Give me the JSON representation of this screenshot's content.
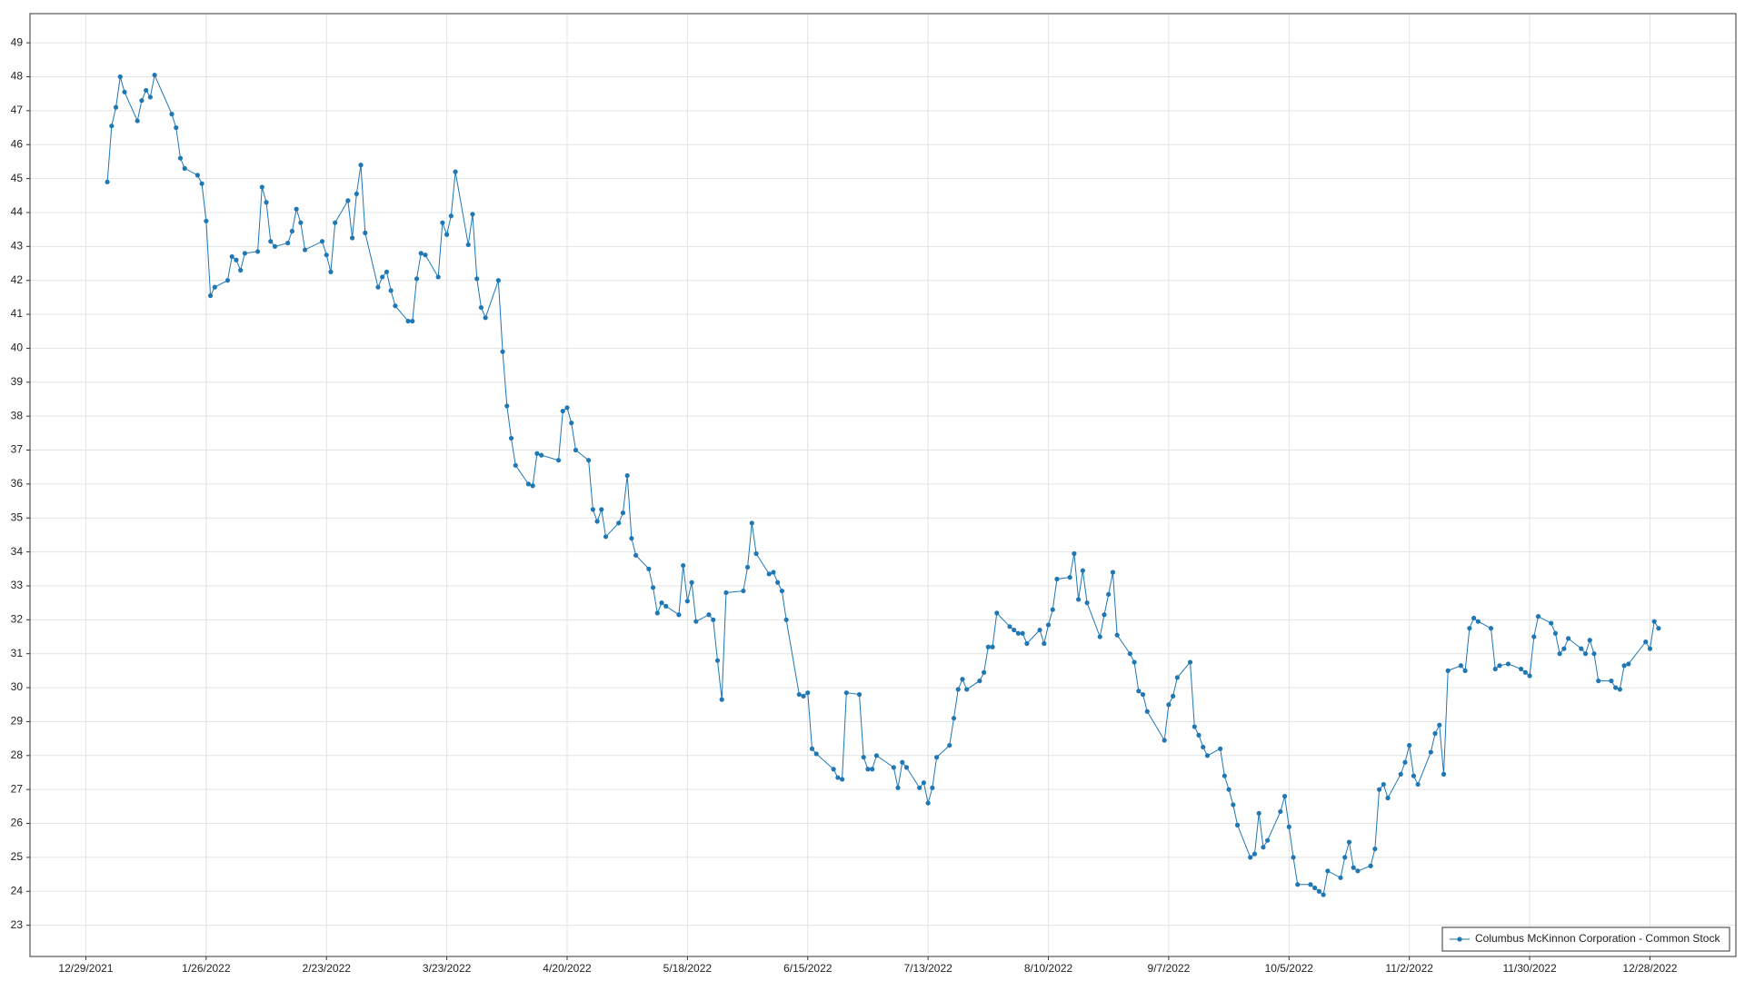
{
  "chart_data": {
    "type": "line",
    "x": [
      "1/3/2022",
      "1/4/2022",
      "1/5/2022",
      "1/6/2022",
      "1/7/2022",
      "1/10/2022",
      "1/11/2022",
      "1/12/2022",
      "1/13/2022",
      "1/14/2022",
      "1/18/2022",
      "1/19/2022",
      "1/20/2022",
      "1/21/2022",
      "1/24/2022",
      "1/25/2022",
      "1/26/2022",
      "1/27/2022",
      "1/28/2022",
      "1/31/2022",
      "2/1/2022",
      "2/2/2022",
      "2/3/2022",
      "2/4/2022",
      "2/7/2022",
      "2/8/2022",
      "2/9/2022",
      "2/10/2022",
      "2/11/2022",
      "2/14/2022",
      "2/15/2022",
      "2/16/2022",
      "2/17/2022",
      "2/18/2022",
      "2/22/2022",
      "2/23/2022",
      "2/24/2022",
      "2/25/2022",
      "2/28/2022",
      "3/1/2022",
      "3/2/2022",
      "3/3/2022",
      "3/4/2022",
      "3/7/2022",
      "3/8/2022",
      "3/9/2022",
      "3/10/2022",
      "3/11/2022",
      "3/14/2022",
      "3/15/2022",
      "3/16/2022",
      "3/17/2022",
      "3/18/2022",
      "3/21/2022",
      "3/22/2022",
      "3/23/2022",
      "3/24/2022",
      "3/25/2022",
      "3/28/2022",
      "3/29/2022",
      "3/30/2022",
      "3/31/2022",
      "4/1/2022",
      "4/4/2022",
      "4/5/2022",
      "4/6/2022",
      "4/7/2022",
      "4/8/2022",
      "4/11/2022",
      "4/12/2022",
      "4/13/2022",
      "4/14/2022",
      "4/18/2022",
      "4/19/2022",
      "4/20/2022",
      "4/21/2022",
      "4/22/2022",
      "4/25/2022",
      "4/26/2022",
      "4/27/2022",
      "4/28/2022",
      "4/29/2022",
      "5/2/2022",
      "5/3/2022",
      "5/4/2022",
      "5/5/2022",
      "5/6/2022",
      "5/9/2022",
      "5/10/2022",
      "5/11/2022",
      "5/12/2022",
      "5/13/2022",
      "5/16/2022",
      "5/17/2022",
      "5/18/2022",
      "5/19/2022",
      "5/20/2022",
      "5/23/2022",
      "5/24/2022",
      "5/25/2022",
      "5/26/2022",
      "5/27/2022",
      "5/31/2022",
      "6/1/2022",
      "6/2/2022",
      "6/3/2022",
      "6/6/2022",
      "6/7/2022",
      "6/8/2022",
      "6/9/2022",
      "6/10/2022",
      "6/13/2022",
      "6/14/2022",
      "6/15/2022",
      "6/16/2022",
      "6/17/2022",
      "6/21/2022",
      "6/22/2022",
      "6/23/2022",
      "6/24/2022",
      "6/27/2022",
      "6/28/2022",
      "6/29/2022",
      "6/30/2022",
      "7/1/2022",
      "7/5/2022",
      "7/6/2022",
      "7/7/2022",
      "7/8/2022",
      "7/11/2022",
      "7/12/2022",
      "7/13/2022",
      "7/14/2022",
      "7/15/2022",
      "7/18/2022",
      "7/19/2022",
      "7/20/2022",
      "7/21/2022",
      "7/22/2022",
      "7/25/2022",
      "7/26/2022",
      "7/27/2022",
      "7/28/2022",
      "7/29/2022",
      "8/1/2022",
      "8/2/2022",
      "8/3/2022",
      "8/4/2022",
      "8/5/2022",
      "8/8/2022",
      "8/9/2022",
      "8/10/2022",
      "8/11/2022",
      "8/12/2022",
      "8/15/2022",
      "8/16/2022",
      "8/17/2022",
      "8/18/2022",
      "8/19/2022",
      "8/22/2022",
      "8/23/2022",
      "8/24/2022",
      "8/25/2022",
      "8/26/2022",
      "8/29/2022",
      "8/30/2022",
      "8/31/2022",
      "9/1/2022",
      "9/2/2022",
      "9/6/2022",
      "9/7/2022",
      "9/8/2022",
      "9/9/2022",
      "9/12/2022",
      "9/13/2022",
      "9/14/2022",
      "9/15/2022",
      "9/16/2022",
      "9/19/2022",
      "9/20/2022",
      "9/21/2022",
      "9/22/2022",
      "9/23/2022",
      "9/26/2022",
      "9/27/2022",
      "9/28/2022",
      "9/29/2022",
      "9/30/2022",
      "10/3/2022",
      "10/4/2022",
      "10/5/2022",
      "10/6/2022",
      "10/7/2022",
      "10/10/2022",
      "10/11/2022",
      "10/12/2022",
      "10/13/2022",
      "10/14/2022",
      "10/17/2022",
      "10/18/2022",
      "10/19/2022",
      "10/20/2022",
      "10/21/2022",
      "10/24/2022",
      "10/25/2022",
      "10/26/2022",
      "10/27/2022",
      "10/28/2022",
      "10/31/2022",
      "11/1/2022",
      "11/2/2022",
      "11/3/2022",
      "11/4/2022",
      "11/7/2022",
      "11/8/2022",
      "11/9/2022",
      "11/10/2022",
      "11/11/2022",
      "11/14/2022",
      "11/15/2022",
      "11/16/2022",
      "11/17/2022",
      "11/18/2022",
      "11/21/2022",
      "11/22/2022",
      "11/23/2022",
      "11/25/2022",
      "11/28/2022",
      "11/29/2022",
      "11/30/2022",
      "12/1/2022",
      "12/2/2022",
      "12/5/2022",
      "12/6/2022",
      "12/7/2022",
      "12/8/2022",
      "12/9/2022",
      "12/12/2022",
      "12/13/2022",
      "12/14/2022",
      "12/15/2022",
      "12/16/2022",
      "12/19/2022",
      "12/20/2022",
      "12/21/2022",
      "12/22/2022",
      "12/23/2022",
      "12/27/2022",
      "12/28/2022",
      "12/29/2022",
      "12/30/2022"
    ],
    "series": [
      {
        "name": "Columbus McKinnon Corporation - Common Stock",
        "color": "#1f77b4",
        "values": [
          44.9,
          46.55,
          47.1,
          48.0,
          47.55,
          46.7,
          47.3,
          47.6,
          47.4,
          48.05,
          46.9,
          46.5,
          45.6,
          45.3,
          45.1,
          44.85,
          43.75,
          41.55,
          41.8,
          42.0,
          42.7,
          42.6,
          42.3,
          42.8,
          42.85,
          44.75,
          44.3,
          43.15,
          43.0,
          43.1,
          43.45,
          44.1,
          43.7,
          42.9,
          43.15,
          42.75,
          42.25,
          43.7,
          44.35,
          43.25,
          44.55,
          45.4,
          43.4,
          41.8,
          42.1,
          42.25,
          41.7,
          41.25,
          40.8,
          40.8,
          42.05,
          42.8,
          42.75,
          42.1,
          43.7,
          43.35,
          43.9,
          45.2,
          43.05,
          43.95,
          42.05,
          41.2,
          40.9,
          42.0,
          39.9,
          38.3,
          37.35,
          36.55,
          36.0,
          35.95,
          36.9,
          36.85,
          36.7,
          38.15,
          38.25,
          37.8,
          37.0,
          36.7,
          35.25,
          34.9,
          35.25,
          34.45,
          34.85,
          35.15,
          36.25,
          34.4,
          33.9,
          33.5,
          32.95,
          32.2,
          32.5,
          32.4,
          32.15,
          33.6,
          32.55,
          33.1,
          31.95,
          32.15,
          32.0,
          30.8,
          29.65,
          32.8,
          32.85,
          33.55,
          34.85,
          33.95,
          33.35,
          33.4,
          33.1,
          32.85,
          32.0,
          29.8,
          29.75,
          29.85,
          28.2,
          28.05,
          27.6,
          27.35,
          27.3,
          29.85,
          29.8,
          27.95,
          27.6,
          27.6,
          28.0,
          27.65,
          27.05,
          27.8,
          27.65,
          27.05,
          27.2,
          26.6,
          27.05,
          27.95,
          28.3,
          29.1,
          29.95,
          30.25,
          29.95,
          30.2,
          30.45,
          31.2,
          31.2,
          32.2,
          31.8,
          31.7,
          31.6,
          31.6,
          31.3,
          31.7,
          31.3,
          31.85,
          32.3,
          33.2,
          33.25,
          33.95,
          32.6,
          33.45,
          32.5,
          31.5,
          32.15,
          32.75,
          33.4,
          31.55,
          31.0,
          30.75,
          29.9,
          29.8,
          29.3,
          28.45,
          29.5,
          29.75,
          30.3,
          30.75,
          28.85,
          28.6,
          28.25,
          28.0,
          28.2,
          27.4,
          27.0,
          26.55,
          25.95,
          25.0,
          25.1,
          26.3,
          25.3,
          25.5,
          26.35,
          26.8,
          25.9,
          25.0,
          24.2,
          24.2,
          24.1,
          24.0,
          23.9,
          24.6,
          24.4,
          25.0,
          25.45,
          24.7,
          24.6,
          24.75,
          25.25,
          27.0,
          27.15,
          26.75,
          27.45,
          27.8,
          28.3,
          27.4,
          27.15,
          28.1,
          28.65,
          28.9,
          27.45,
          30.5,
          30.65,
          30.5,
          31.75,
          32.05,
          31.95,
          31.75,
          30.55,
          30.65,
          30.7,
          30.55,
          30.45,
          30.35,
          31.5,
          32.1,
          31.9,
          31.6,
          31.0,
          31.15,
          31.45,
          31.15,
          31.0,
          31.4,
          31.0,
          30.2,
          30.2,
          30.0,
          29.95,
          30.65,
          30.7,
          31.35,
          31.15,
          31.95,
          31.75
        ]
      }
    ],
    "xlim": [
      "12/16/2021",
      "1/17/2023"
    ],
    "xticks": [
      "12/29/2021",
      "1/26/2022",
      "2/23/2022",
      "3/23/2022",
      "4/20/2022",
      "5/18/2022",
      "6/15/2022",
      "7/13/2022",
      "8/10/2022",
      "9/7/2022",
      "10/5/2022",
      "11/2/2022",
      "11/30/2022",
      "12/28/2022"
    ],
    "ylim": [
      22.08,
      49.86
    ],
    "yticks": [
      23,
      24,
      25,
      26,
      27,
      28,
      29,
      30,
      31,
      32,
      33,
      34,
      35,
      36,
      37,
      38,
      39,
      40,
      41,
      42,
      43,
      44,
      45,
      46,
      47,
      48,
      49
    ],
    "grid": true,
    "legend": "lower right"
  }
}
